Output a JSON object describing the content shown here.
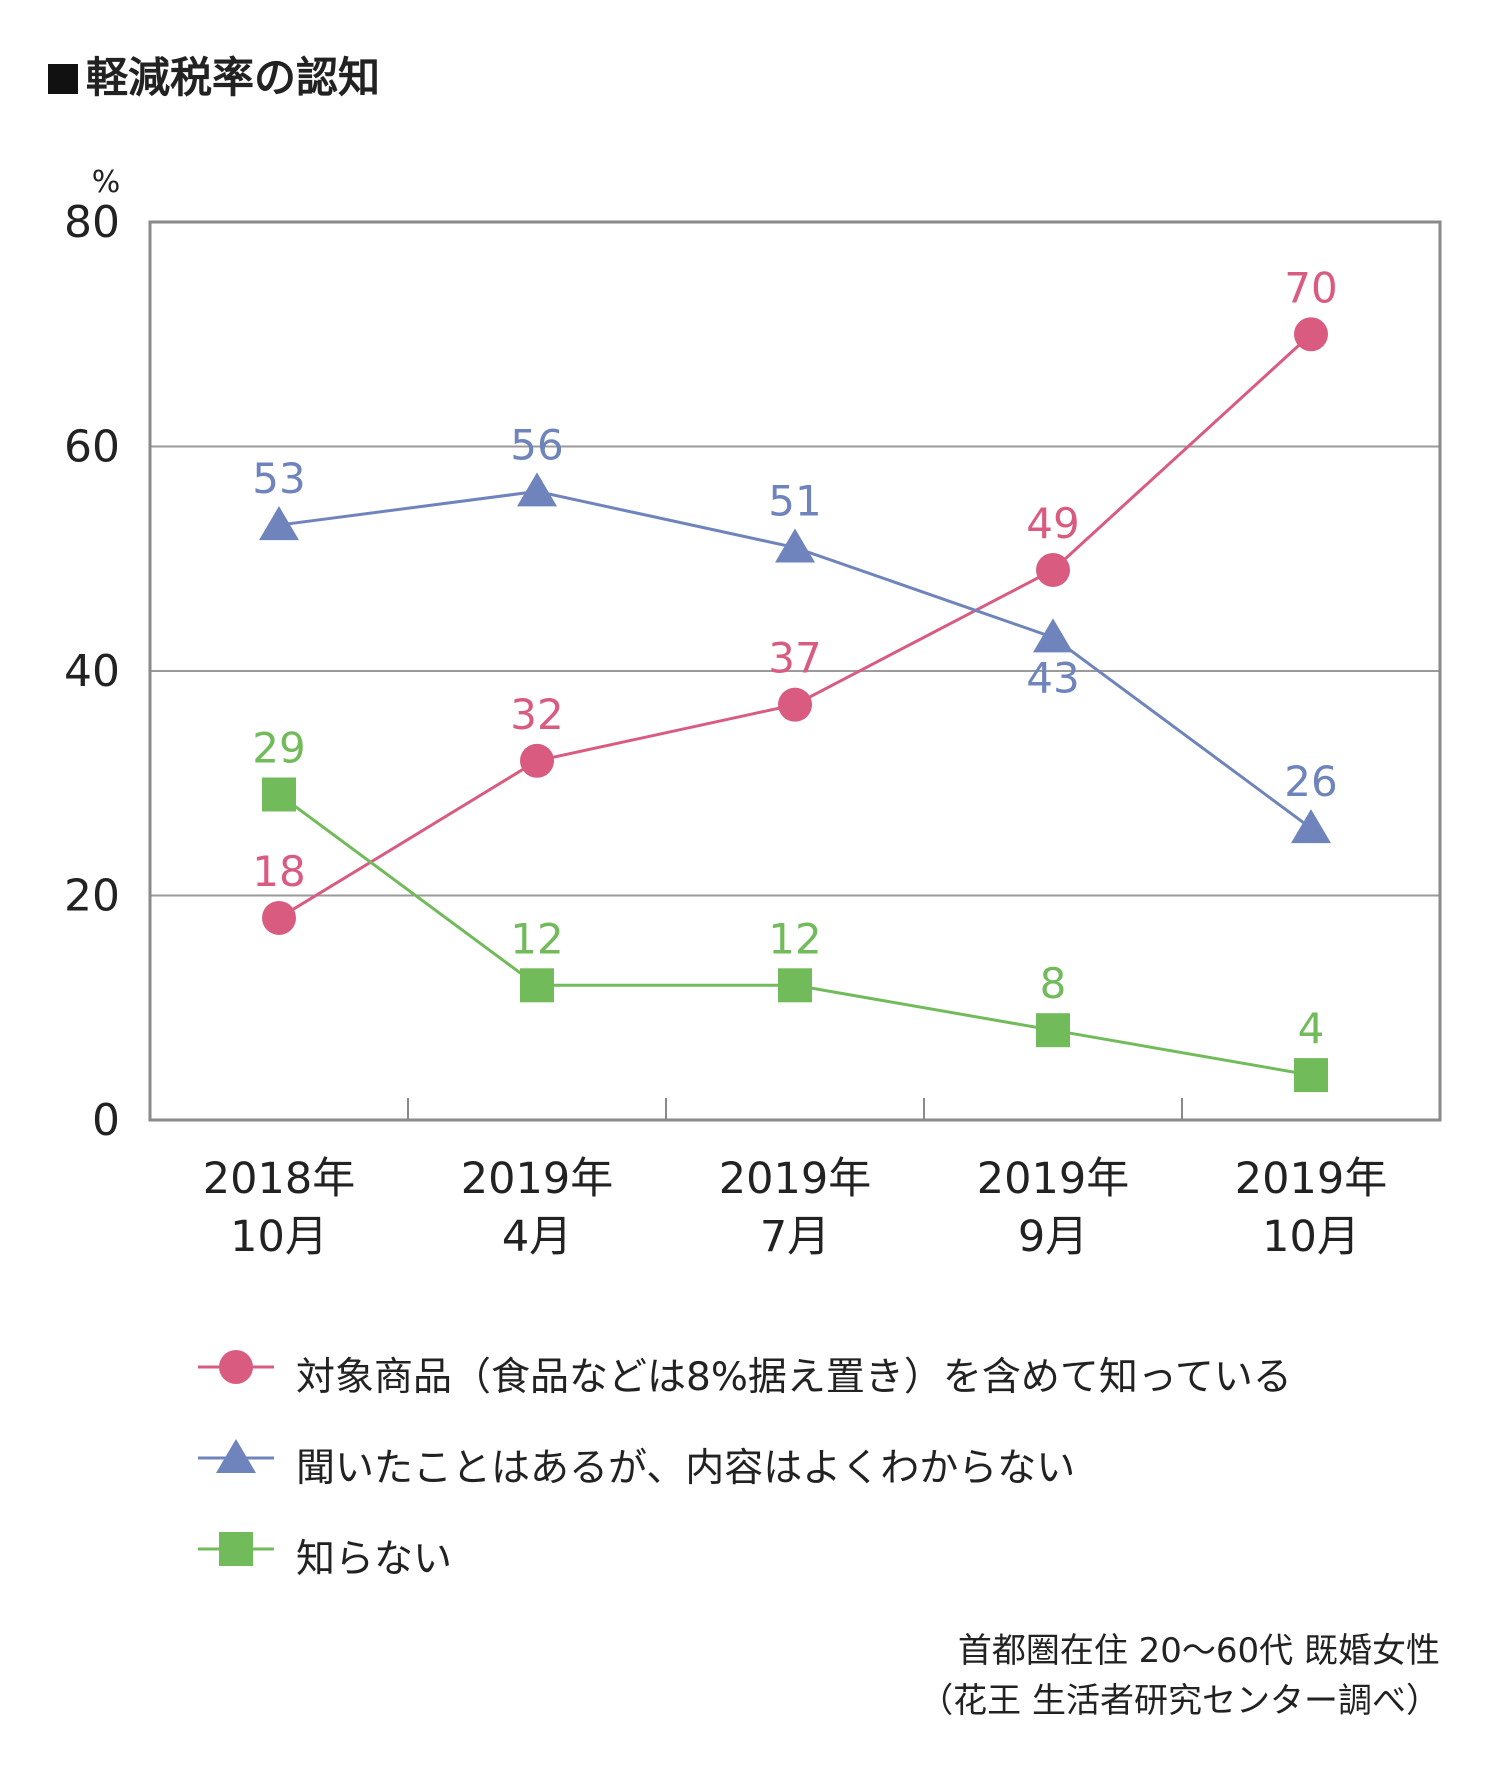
{
  "title": "軽減税率の認知",
  "chart_data": {
    "type": "line",
    "y_unit": "%",
    "ylim": [
      0,
      80
    ],
    "yticks": [
      0,
      20,
      40,
      60,
      80
    ],
    "grid": true,
    "categories": [
      [
        "2018年",
        "10月"
      ],
      [
        "2019年",
        "4月"
      ],
      [
        "2019年",
        "7月"
      ],
      [
        "2019年",
        "9月"
      ],
      [
        "2019年",
        "10月"
      ]
    ],
    "series": [
      {
        "name": "対象商品（食品などは8%据え置き）を含めて知っている",
        "marker": "circle",
        "color": "#d95c80",
        "values": [
          18,
          32,
          37,
          49,
          70
        ]
      },
      {
        "name": "聞いたことはあるが、内容はよくわからない",
        "marker": "triangle",
        "color": "#6f84bd",
        "values": [
          53,
          56,
          51,
          43,
          26
        ]
      },
      {
        "name": "知らない",
        "marker": "square",
        "color": "#72bb5a",
        "values": [
          29,
          12,
          12,
          8,
          4
        ]
      }
    ],
    "legend_position": "bottom"
  },
  "note": [
    "首都圏在住 20〜60代 既婚女性",
    "（花王 生活者研究センター調べ）"
  ]
}
